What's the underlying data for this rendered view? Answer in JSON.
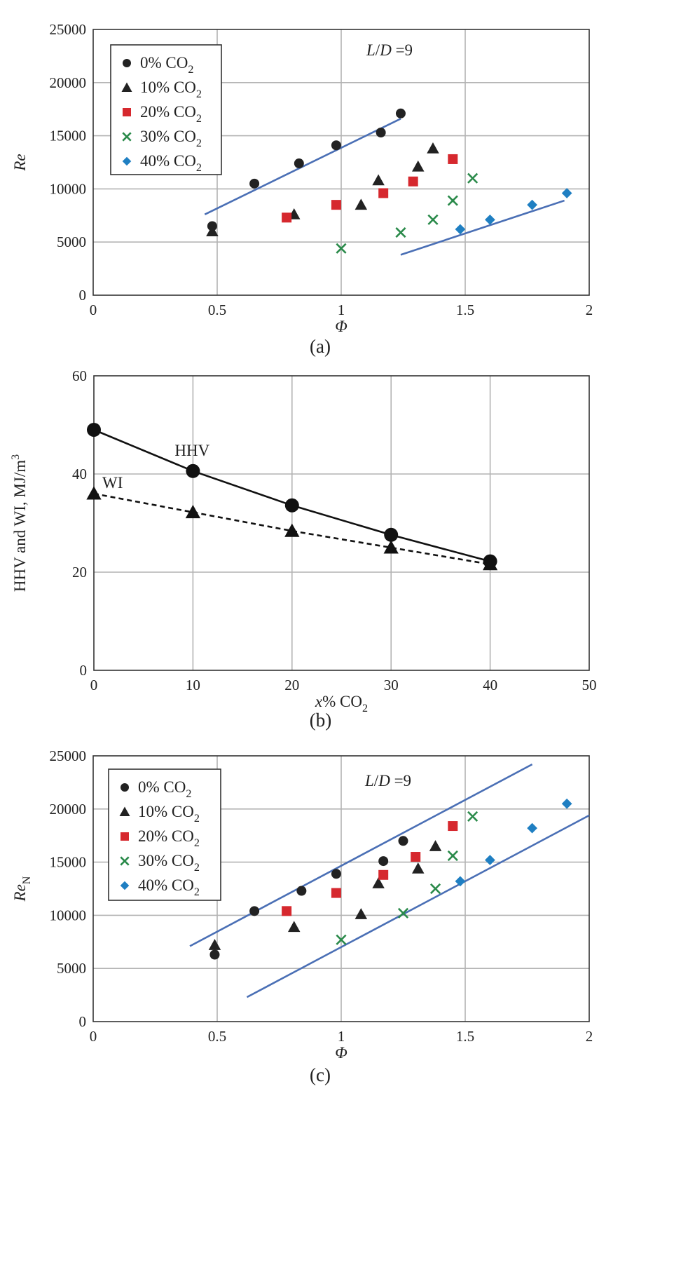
{
  "colors": {
    "series": [
      "#222222",
      "#222222",
      "#d6282e",
      "#2a8a4a",
      "#1f7fc2"
    ],
    "fit_line": "#4a6fb5",
    "grid": "#b3b3b3"
  },
  "chart_data": [
    {
      "id": "a",
      "type": "scatter",
      "caption": "(a)",
      "xlabel": "Φ",
      "ylabel": "Re",
      "ylabel_sub": "",
      "annotation": {
        "text": "L/D =9"
      },
      "xlim": [
        0,
        2
      ],
      "ylim": [
        0,
        25000
      ],
      "xticks": [
        "0",
        "0.5",
        "1",
        "1.5",
        "2"
      ],
      "yticks": [
        "0",
        "5000",
        "10000",
        "15000",
        "20000",
        "25000"
      ],
      "legend": {
        "position": "top-left"
      },
      "series": [
        {
          "name": "0% CO2",
          "marker": "circle",
          "points": [
            [
              0.48,
              6500
            ],
            [
              0.65,
              10500
            ],
            [
              0.83,
              12400
            ],
            [
              0.98,
              14100
            ],
            [
              1.16,
              15300
            ],
            [
              1.24,
              17100
            ]
          ]
        },
        {
          "name": "10% CO2",
          "marker": "triangle",
          "points": [
            [
              0.48,
              6000
            ],
            [
              0.81,
              7600
            ],
            [
              1.08,
              8500
            ],
            [
              1.15,
              10800
            ],
            [
              1.31,
              12100
            ],
            [
              1.37,
              13800
            ]
          ]
        },
        {
          "name": "20% CO2",
          "marker": "square",
          "points": [
            [
              0.78,
              7300
            ],
            [
              0.98,
              8500
            ],
            [
              1.17,
              9600
            ],
            [
              1.29,
              10700
            ],
            [
              1.45,
              12800
            ]
          ]
        },
        {
          "name": "30% CO2",
          "marker": "x",
          "points": [
            [
              1.0,
              4400
            ],
            [
              1.24,
              5900
            ],
            [
              1.37,
              7100
            ],
            [
              1.45,
              8900
            ],
            [
              1.53,
              11000
            ]
          ]
        },
        {
          "name": "40% CO2",
          "marker": "diamond",
          "points": [
            [
              1.48,
              6200
            ],
            [
              1.6,
              7100
            ],
            [
              1.77,
              8500
            ],
            [
              1.91,
              9600
            ]
          ]
        }
      ],
      "fit_lines": [
        [
          [
            0.45,
            7600
          ],
          [
            1.24,
            16600
          ]
        ],
        [
          [
            1.24,
            3800
          ],
          [
            1.9,
            8900
          ]
        ]
      ]
    },
    {
      "id": "b",
      "type": "line",
      "caption": "(b)",
      "xlabel": "x% CO2",
      "ylabel": "HHV and WI, MJ/m3",
      "xlim": [
        0,
        50
      ],
      "ylim": [
        0,
        60
      ],
      "xticks": [
        "0",
        "10",
        "20",
        "30",
        "40",
        "50"
      ],
      "yticks": [
        "0",
        "20",
        "40",
        "60"
      ],
      "x": [
        0,
        10,
        20,
        30,
        40
      ],
      "series": [
        {
          "name": "HHV",
          "marker": "circle",
          "style": "solid",
          "values": [
            49.0,
            40.6,
            33.6,
            27.6,
            22.2
          ]
        },
        {
          "name": "WI",
          "marker": "triangle",
          "style": "dashed",
          "values": [
            36.0,
            32.2,
            28.4,
            25.0,
            21.6
          ]
        }
      ]
    },
    {
      "id": "c",
      "type": "scatter",
      "caption": "(c)",
      "xlabel": "Φ",
      "ylabel": "Re",
      "ylabel_sub": "N",
      "annotation": {
        "text": "L/D =9"
      },
      "xlim": [
        0,
        2
      ],
      "ylim": [
        0,
        25000
      ],
      "xticks": [
        "0",
        "0.5",
        "1",
        "1.5",
        "2"
      ],
      "yticks": [
        "0",
        "5000",
        "10000",
        "15000",
        "20000",
        "25000"
      ],
      "legend": {
        "position": "top-left"
      },
      "series": [
        {
          "name": "0% CO2",
          "marker": "circle",
          "points": [
            [
              0.49,
              6300
            ],
            [
              0.65,
              10400
            ],
            [
              0.84,
              12300
            ],
            [
              0.98,
              13900
            ],
            [
              1.17,
              15100
            ],
            [
              1.25,
              17000
            ]
          ]
        },
        {
          "name": "10% CO2",
          "marker": "triangle",
          "points": [
            [
              0.49,
              7200
            ],
            [
              0.81,
              8900
            ],
            [
              1.08,
              10100
            ],
            [
              1.15,
              13000
            ],
            [
              1.31,
              14400
            ],
            [
              1.38,
              16500
            ]
          ]
        },
        {
          "name": "20% CO2",
          "marker": "square",
          "points": [
            [
              0.78,
              10400
            ],
            [
              0.98,
              12100
            ],
            [
              1.17,
              13800
            ],
            [
              1.3,
              15500
            ],
            [
              1.45,
              18400
            ]
          ]
        },
        {
          "name": "30% CO2",
          "marker": "x",
          "points": [
            [
              1.0,
              7700
            ],
            [
              1.25,
              10200
            ],
            [
              1.38,
              12500
            ],
            [
              1.45,
              15600
            ],
            [
              1.53,
              19300
            ]
          ]
        },
        {
          "name": "40% CO2",
          "marker": "diamond",
          "points": [
            [
              1.48,
              13200
            ],
            [
              1.6,
              15200
            ],
            [
              1.77,
              18200
            ],
            [
              1.91,
              20500
            ]
          ]
        }
      ],
      "fit_lines": [
        [
          [
            0.39,
            7100
          ],
          [
            1.77,
            24200
          ]
        ],
        [
          [
            0.62,
            2300
          ],
          [
            2.0,
            19400
          ]
        ]
      ]
    }
  ]
}
